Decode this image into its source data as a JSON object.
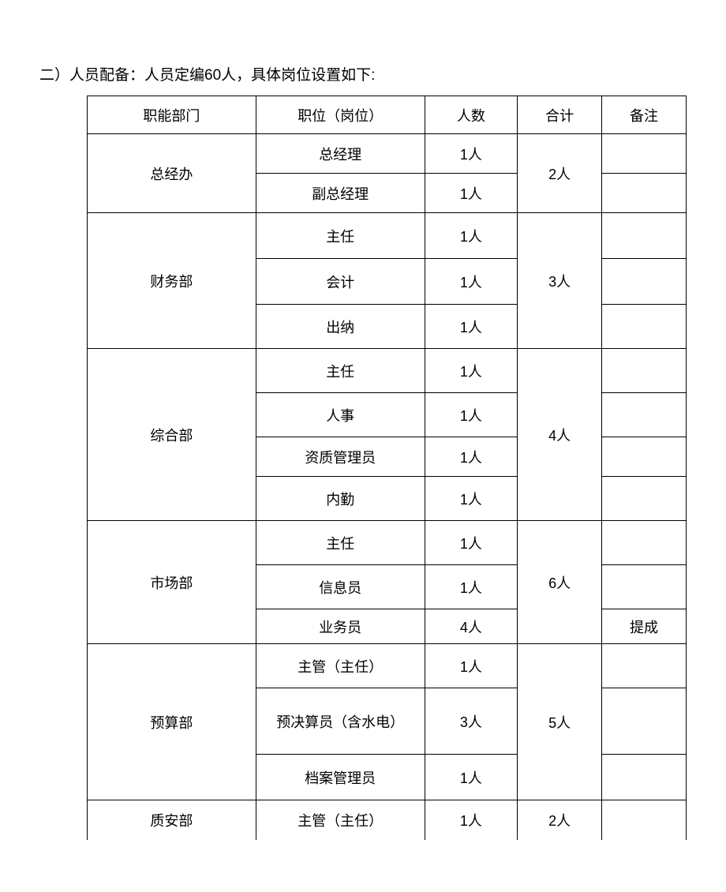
{
  "title": "二）人员配备：人员定编60人，具体岗位设置如下:",
  "headers": {
    "department": "职能部门",
    "position": "职位（岗位）",
    "count": "人数",
    "total": "合计",
    "note": "备注"
  },
  "departments": [
    {
      "name": "总经办",
      "total": "2人",
      "positions": [
        {
          "title": "总经理",
          "count": "1人",
          "note": ""
        },
        {
          "title": "副总经理",
          "count": "1人",
          "note": ""
        }
      ]
    },
    {
      "name": "财务部",
      "total": "3人",
      "positions": [
        {
          "title": "主任",
          "count": "1人",
          "note": ""
        },
        {
          "title": "会计",
          "count": "1人",
          "note": ""
        },
        {
          "title": "出纳",
          "count": "1人",
          "note": ""
        }
      ]
    },
    {
      "name": "综合部",
      "total": "4人",
      "positions": [
        {
          "title": "主任",
          "count": "1人",
          "note": ""
        },
        {
          "title": "人事",
          "count": "1人",
          "note": ""
        },
        {
          "title": "资质管理员",
          "count": "1人",
          "note": ""
        },
        {
          "title": "内勤",
          "count": "1人",
          "note": ""
        }
      ]
    },
    {
      "name": "市场部",
      "total": "6人",
      "positions": [
        {
          "title": "主任",
          "count": "1人",
          "note": ""
        },
        {
          "title": "信息员",
          "count": "1人",
          "note": ""
        },
        {
          "title": "业务员",
          "count": "4人",
          "note": "提成"
        }
      ]
    },
    {
      "name": "预算部",
      "total": "5人",
      "positions": [
        {
          "title": "主管（主任）",
          "count": "1人",
          "note": ""
        },
        {
          "title": "预决算员（含水电）",
          "count": "3人",
          "note": ""
        },
        {
          "title": "档案管理员",
          "count": "1人",
          "note": ""
        }
      ]
    },
    {
      "name": "质安部",
      "total": "2人",
      "positions": [
        {
          "title": "主管（主任）",
          "count": "1人",
          "note": ""
        }
      ]
    }
  ]
}
